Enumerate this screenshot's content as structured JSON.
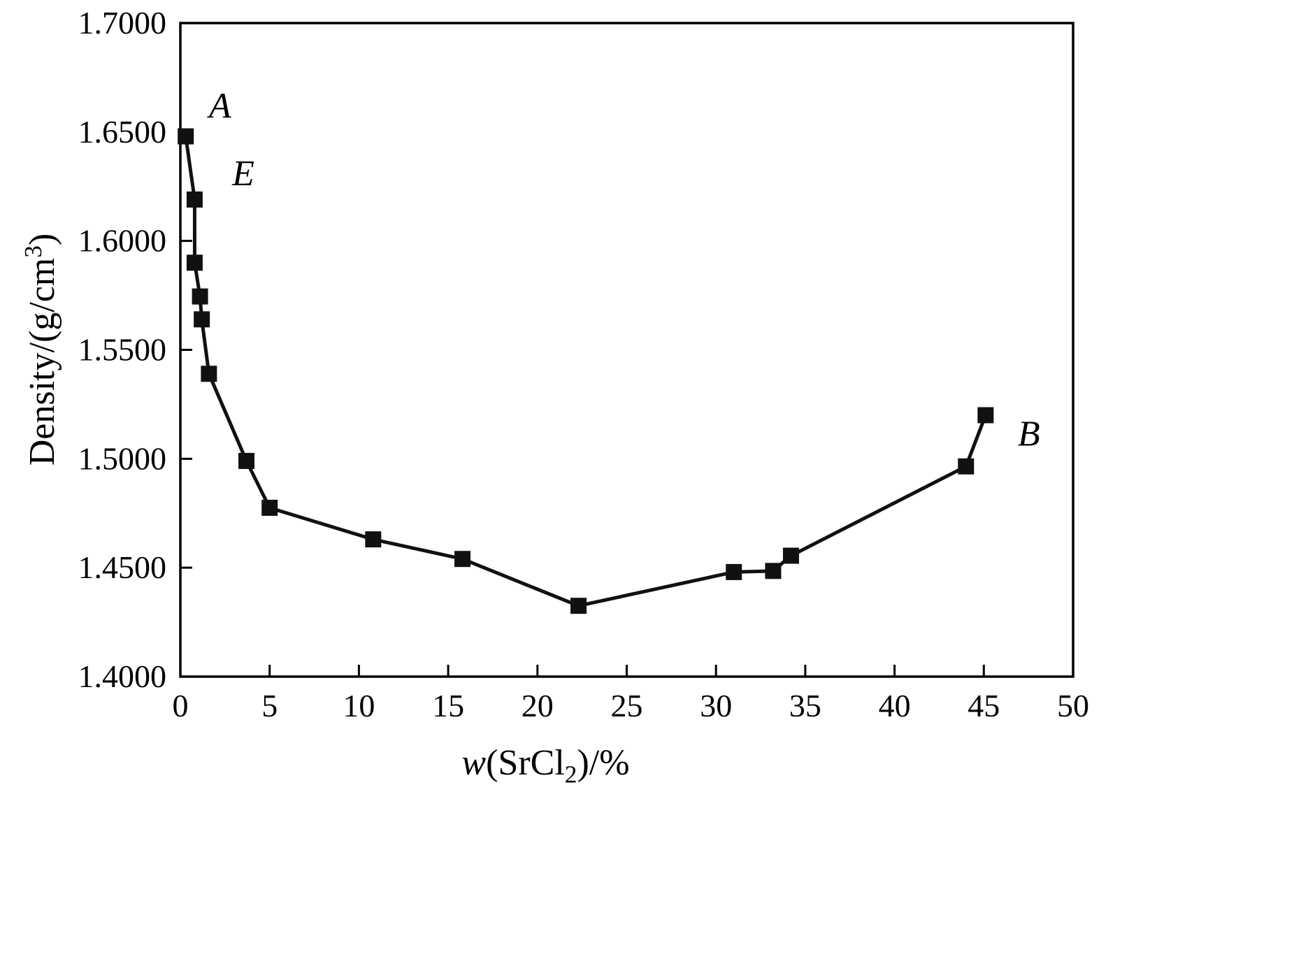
{
  "chart_data": {
    "type": "line",
    "title": "",
    "xlabel_parts": {
      "italic": "w",
      "pre": "(SrCl",
      "sub": "2",
      "post": ")/%"
    },
    "ylabel_parts": {
      "pre": "Density/(g/cm",
      "sup": "3",
      "post": ")"
    },
    "xlim": [
      0,
      50
    ],
    "ylim": [
      1.4,
      1.7
    ],
    "x_ticks": [
      0,
      5,
      10,
      15,
      20,
      25,
      30,
      35,
      40,
      45,
      50
    ],
    "x_tick_labels": [
      "0",
      "5",
      "10",
      "15",
      "20",
      "25",
      "30",
      "35",
      "40",
      "45",
      "50"
    ],
    "y_ticks": [
      1.4,
      1.45,
      1.5,
      1.55,
      1.6,
      1.65,
      1.7
    ],
    "y_tick_labels": [
      "1.4000",
      "1.4500",
      "1.5000",
      "1.5500",
      "1.6000",
      "1.6500",
      "1.7000"
    ],
    "grid": false,
    "legend": "none",
    "series": [
      {
        "name": "density-vs-srcl2",
        "marker": "square",
        "color": "#111111",
        "points": [
          {
            "x": 0.3,
            "y": 1.648
          },
          {
            "x": 0.8,
            "y": 1.619
          },
          {
            "x": 0.8,
            "y": 1.59
          },
          {
            "x": 1.1,
            "y": 1.5745
          },
          {
            "x": 1.2,
            "y": 1.564
          },
          {
            "x": 1.6,
            "y": 1.539
          },
          {
            "x": 3.7,
            "y": 1.499
          },
          {
            "x": 5.0,
            "y": 1.4775
          },
          {
            "x": 10.8,
            "y": 1.463
          },
          {
            "x": 15.8,
            "y": 1.454
          },
          {
            "x": 22.3,
            "y": 1.4325
          },
          {
            "x": 31.0,
            "y": 1.448
          },
          {
            "x": 33.2,
            "y": 1.4485
          },
          {
            "x": 34.2,
            "y": 1.4555
          },
          {
            "x": 44.0,
            "y": 1.4965
          },
          {
            "x": 45.1,
            "y": 1.52
          }
        ]
      }
    ],
    "annotations": [
      {
        "label": "A",
        "x": 1.6,
        "y": 1.6565
      },
      {
        "label": "E",
        "x": 2.9,
        "y": 1.6255
      },
      {
        "label": "B",
        "x": 46.9,
        "y": 1.506
      }
    ]
  },
  "colors": {
    "axis": "#000000",
    "line": "#111111",
    "marker": "#111111",
    "background": "#ffffff"
  }
}
